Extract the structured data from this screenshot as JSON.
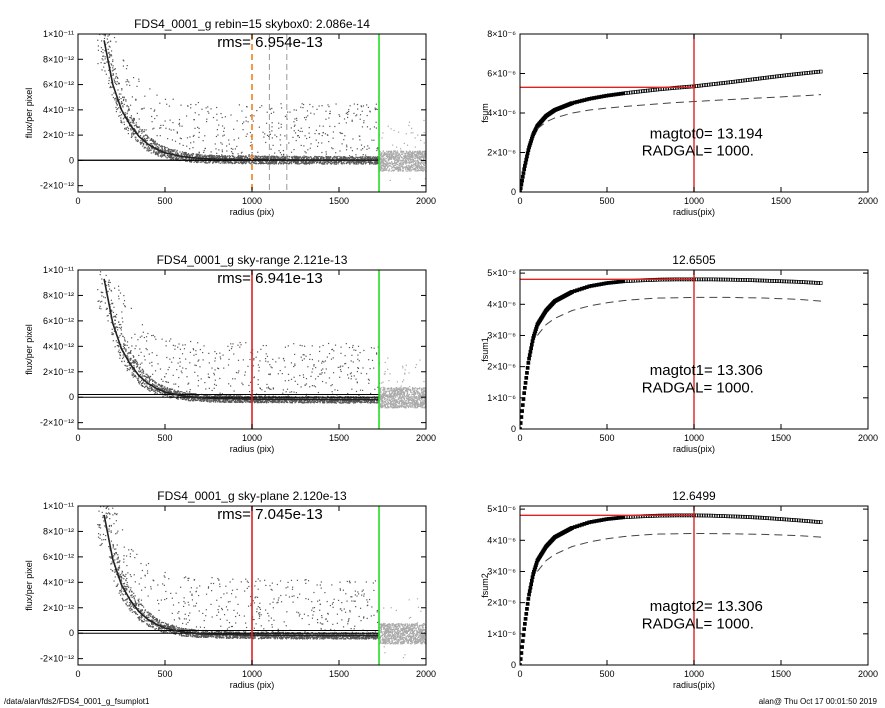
{
  "footer": {
    "left": "/data/alan/fds2/FDS4_0001_g_fsumplot1",
    "right": "alan@  Thu Oct 17 00:01:50 2019"
  },
  "colors": {
    "red": "#dd2222",
    "green": "#22dd22",
    "orange": "#f08020",
    "scatter": "#555555",
    "scatter_light": "#aaaaaa",
    "profile": "#222222"
  },
  "chart_data": [
    {
      "type": "scatter",
      "title": "FDS4_0001_g rebin=15    skybox0:  2.086e-14",
      "annotation": "rms= 6.954e-13",
      "xlabel": "radius (pix)",
      "ylabel": "flux/per pixel",
      "xlim": [
        0,
        2000
      ],
      "ylim": [
        -2.5e-12,
        1e-11
      ],
      "xticks": [
        0,
        500,
        1000,
        1500,
        2000
      ],
      "yticks": [
        {
          "v": -2e-12,
          "label": "-2×10⁻¹²"
        },
        {
          "v": 0,
          "label": "0"
        },
        {
          "v": 2e-12,
          "label": "2×10⁻¹²"
        },
        {
          "v": 4e-12,
          "label": "4×10⁻¹²"
        },
        {
          "v": 6e-12,
          "label": "6×10⁻¹²"
        },
        {
          "v": 8e-12,
          "label": "8×10⁻¹²"
        },
        {
          "v": 1e-11,
          "label": "1×10⁻¹¹"
        }
      ],
      "profile": {
        "x": [
          150,
          200,
          250,
          300,
          350,
          400,
          450,
          500,
          600,
          700,
          800,
          1000,
          1300,
          1730
        ],
        "y": [
          9.5e-12,
          6e-12,
          4e-12,
          2.8e-12,
          1.9e-12,
          1.3e-12,
          9e-13,
          6e-13,
          3e-13,
          1.6e-13,
          1e-13,
          6e-14,
          3e-14,
          2e-14
        ]
      },
      "sky_lines": [
        0,
        2.1e-14
      ],
      "vlines": [
        {
          "x": 1000,
          "color": "orange",
          "style": "dashed"
        },
        {
          "x": 1100,
          "color": "gray",
          "style": "dashed"
        },
        {
          "x": 1200,
          "color": "gray",
          "style": "dashed"
        },
        {
          "x": 1730,
          "color": "green",
          "style": "solid"
        }
      ],
      "grid": false
    },
    {
      "type": "scatter",
      "title": "FDS4_0001_g sky-range  2.121e-13",
      "annotation": "rms= 6.941e-13",
      "xlabel": "radius (pix)",
      "ylabel": "flux/per pixel",
      "xlim": [
        0,
        2000
      ],
      "ylim": [
        -2.5e-12,
        1e-11
      ],
      "xticks": [
        0,
        500,
        1000,
        1500,
        2000
      ],
      "yticks": [
        {
          "v": -2e-12,
          "label": "-2×10⁻¹²"
        },
        {
          "v": 0,
          "label": "0"
        },
        {
          "v": 2e-12,
          "label": "2×10⁻¹²"
        },
        {
          "v": 4e-12,
          "label": "4×10⁻¹²"
        },
        {
          "v": 6e-12,
          "label": "6×10⁻¹²"
        },
        {
          "v": 8e-12,
          "label": "8×10⁻¹²"
        },
        {
          "v": 1e-11,
          "label": "1×10⁻¹¹"
        }
      ],
      "profile": {
        "x": [
          150,
          200,
          250,
          300,
          350,
          400,
          450,
          500,
          600,
          700,
          800,
          1000,
          1300,
          1730
        ],
        "y": [
          9.3e-12,
          5.8e-12,
          3.8e-12,
          2.6e-12,
          1.7e-12,
          1.1e-12,
          7e-13,
          4e-13,
          1e-13,
          -4e-14,
          -1e-13,
          -1.5e-13,
          -1.8e-13,
          -1.9e-13
        ]
      },
      "sky_lines": [
        0,
        2.121e-13
      ],
      "vlines": [
        {
          "x": 1000,
          "color": "red",
          "style": "solid"
        },
        {
          "x": 1730,
          "color": "green",
          "style": "solid"
        }
      ],
      "grid": false
    },
    {
      "type": "scatter",
      "title": "FDS4_0001_g sky-plane  2.120e-13",
      "annotation": "rms= 7.045e-13",
      "xlabel": "radius (pix)",
      "ylabel": "flux/per pixel",
      "xlim": [
        0,
        2000
      ],
      "ylim": [
        -2.5e-12,
        1e-11
      ],
      "xticks": [
        0,
        500,
        1000,
        1500,
        2000
      ],
      "yticks": [
        {
          "v": -2e-12,
          "label": "-2×10⁻¹²"
        },
        {
          "v": 0,
          "label": "0"
        },
        {
          "v": 2e-12,
          "label": "2×10⁻¹²"
        },
        {
          "v": 4e-12,
          "label": "4×10⁻¹²"
        },
        {
          "v": 6e-12,
          "label": "6×10⁻¹²"
        },
        {
          "v": 8e-12,
          "label": "8×10⁻¹²"
        },
        {
          "v": 1e-11,
          "label": "1×10⁻¹¹"
        }
      ],
      "profile": {
        "x": [
          150,
          200,
          250,
          300,
          350,
          400,
          450,
          500,
          600,
          700,
          800,
          1000,
          1300,
          1730
        ],
        "y": [
          9.3e-12,
          5.8e-12,
          3.8e-12,
          2.6e-12,
          1.7e-12,
          1.1e-12,
          7e-13,
          4e-13,
          1e-13,
          -4e-14,
          -1e-13,
          -1.5e-13,
          -1.8e-13,
          -1.9e-13
        ]
      },
      "sky_lines": [
        0,
        2.12e-13
      ],
      "vlines": [
        {
          "x": 1000,
          "color": "red",
          "style": "solid"
        },
        {
          "x": 1730,
          "color": "green",
          "style": "solid"
        }
      ],
      "grid": false
    },
    {
      "type": "line",
      "title": "",
      "xlabel": "radius(pix)",
      "ylabel": "fsum",
      "xlim": [
        0,
        2000
      ],
      "ylim": [
        0,
        8e-06
      ],
      "xticks": [
        0,
        500,
        1000,
        1500,
        2000
      ],
      "yticks": [
        {
          "v": 0,
          "label": "0"
        },
        {
          "v": 2e-06,
          "label": "2×10⁻⁶"
        },
        {
          "v": 4e-06,
          "label": "4×10⁻⁶"
        },
        {
          "v": 6e-06,
          "label": "6×10⁻⁶"
        },
        {
          "v": 8e-06,
          "label": "8×10⁻⁶"
        }
      ],
      "annotations": [
        "magtot0=  13.194",
        "RADGAL=   1000."
      ],
      "series": [
        {
          "style": "squares",
          "x": [
            0,
            25,
            50,
            75,
            100,
            150,
            200,
            300,
            400,
            500,
            600,
            700,
            800,
            900,
            1000,
            1100,
            1200,
            1300,
            1400,
            1500,
            1600,
            1730
          ],
          "y": [
            0,
            1.2e-06,
            2.2e-06,
            2.9e-06,
            3.35e-06,
            3.85e-06,
            4.15e-06,
            4.5e-06,
            4.72e-06,
            4.88e-06,
            5e-06,
            5.1e-06,
            5.2e-06,
            5.28e-06,
            5.35e-06,
            5.45e-06,
            5.55e-06,
            5.66e-06,
            5.77e-06,
            5.88e-06,
            5.98e-06,
            6.1e-06
          ]
        },
        {
          "style": "dashed",
          "x": [
            100,
            150,
            200,
            300,
            400,
            500,
            600,
            700,
            800,
            900,
            1000,
            1200,
            1400,
            1600,
            1730
          ],
          "y": [
            3.2e-06,
            3.55e-06,
            3.75e-06,
            4e-06,
            4.15e-06,
            4.25e-06,
            4.33e-06,
            4.4e-06,
            4.47e-06,
            4.53e-06,
            4.58e-06,
            4.68e-06,
            4.77e-06,
            4.86e-06,
            4.93e-06
          ]
        }
      ],
      "hline": {
        "y": 5.3e-06,
        "x_end": 1000
      },
      "vline": {
        "x": 1000
      }
    },
    {
      "type": "line",
      "title": "12.6505",
      "xlabel": "radius(pix)",
      "ylabel": "fsum1",
      "xlim": [
        0,
        2000
      ],
      "ylim": [
        0,
        5.1e-06
      ],
      "xticks": [
        0,
        500,
        1000,
        1500,
        2000
      ],
      "yticks": [
        {
          "v": 0,
          "label": "0"
        },
        {
          "v": 1e-06,
          "label": "1×10⁻⁶"
        },
        {
          "v": 2e-06,
          "label": "2×10⁻⁶"
        },
        {
          "v": 3e-06,
          "label": "3×10⁻⁶"
        },
        {
          "v": 4e-06,
          "label": "4×10⁻⁶"
        },
        {
          "v": 5e-06,
          "label": "5×10⁻⁶"
        }
      ],
      "annotations": [
        "magtot1=  13.306",
        "RADGAL=   1000."
      ],
      "series": [
        {
          "style": "squares",
          "x": [
            0,
            25,
            50,
            75,
            100,
            150,
            200,
            300,
            400,
            500,
            600,
            700,
            800,
            900,
            1000,
            1100,
            1200,
            1300,
            1400,
            1500,
            1600,
            1730
          ],
          "y": [
            0,
            1.2e-06,
            2.2e-06,
            2.9e-06,
            3.35e-06,
            3.8e-06,
            4.1e-06,
            4.4e-06,
            4.58e-06,
            4.68e-06,
            4.74e-06,
            4.77e-06,
            4.79e-06,
            4.8e-06,
            4.8e-06,
            4.8e-06,
            4.79e-06,
            4.78e-06,
            4.76e-06,
            4.74e-06,
            4.72e-06,
            4.68e-06
          ]
        },
        {
          "style": "dashed",
          "x": [
            100,
            150,
            200,
            300,
            400,
            500,
            600,
            700,
            800,
            1000,
            1200,
            1400,
            1600,
            1730
          ],
          "y": [
            3e-06,
            3.35e-06,
            3.55e-06,
            3.8e-06,
            3.95e-06,
            4.05e-06,
            4.12e-06,
            4.17e-06,
            4.2e-06,
            4.22e-06,
            4.22e-06,
            4.2e-06,
            4.16e-06,
            4.1e-06
          ]
        }
      ],
      "hline": {
        "y": 4.8e-06,
        "x_end": 1000
      },
      "vline": {
        "x": 1000
      }
    },
    {
      "type": "line",
      "title": "12.6499",
      "xlabel": "radius(pix)",
      "ylabel": "fsum2",
      "xlim": [
        0,
        2000
      ],
      "ylim": [
        0,
        5.1e-06
      ],
      "xticks": [
        0,
        500,
        1000,
        1500,
        2000
      ],
      "yticks": [
        {
          "v": 0,
          "label": "0"
        },
        {
          "v": 1e-06,
          "label": "1×10⁻⁶"
        },
        {
          "v": 2e-06,
          "label": "2×10⁻⁶"
        },
        {
          "v": 3e-06,
          "label": "3×10⁻⁶"
        },
        {
          "v": 4e-06,
          "label": "4×10⁻⁶"
        },
        {
          "v": 5e-06,
          "label": "5×10⁻⁶"
        }
      ],
      "annotations": [
        "magtot2=  13.306",
        "RADGAL=   1000."
      ],
      "series": [
        {
          "style": "squares",
          "x": [
            0,
            25,
            50,
            75,
            100,
            150,
            200,
            300,
            400,
            500,
            600,
            700,
            800,
            900,
            1000,
            1100,
            1200,
            1300,
            1400,
            1500,
            1600,
            1730
          ],
          "y": [
            0,
            1.2e-06,
            2.2e-06,
            2.9e-06,
            3.35e-06,
            3.8e-06,
            4.1e-06,
            4.4e-06,
            4.58e-06,
            4.68e-06,
            4.74e-06,
            4.77e-06,
            4.79e-06,
            4.8e-06,
            4.8e-06,
            4.79e-06,
            4.77e-06,
            4.75e-06,
            4.72e-06,
            4.68e-06,
            4.64e-06,
            4.58e-06
          ]
        },
        {
          "style": "dashed",
          "x": [
            100,
            150,
            200,
            300,
            400,
            500,
            600,
            700,
            800,
            1000,
            1200,
            1400,
            1600,
            1730
          ],
          "y": [
            3e-06,
            3.35e-06,
            3.55e-06,
            3.8e-06,
            3.95e-06,
            4.05e-06,
            4.12e-06,
            4.17e-06,
            4.2e-06,
            4.22e-06,
            4.21e-06,
            4.19e-06,
            4.15e-06,
            4.1e-06
          ]
        }
      ],
      "hline": {
        "y": 4.8e-06,
        "x_end": 1000
      },
      "vline": {
        "x": 1000
      }
    }
  ]
}
